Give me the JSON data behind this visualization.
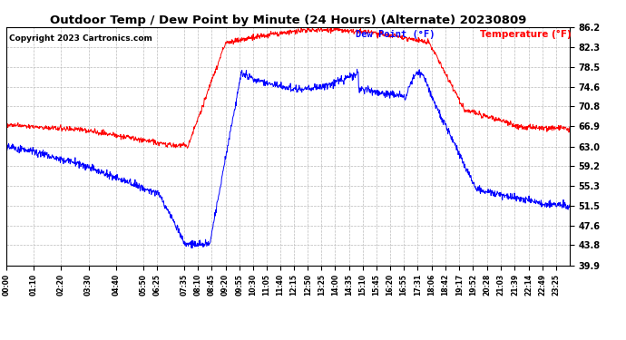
{
  "title": "Outdoor Temp / Dew Point by Minute (24 Hours) (Alternate) 20230809",
  "copyright": "Copyright 2023 Cartronics.com",
  "legend_dew": "Dew Point (°F)",
  "legend_temp": "Temperature (°F)",
  "temp_color": "red",
  "dew_color": "blue",
  "bg_color": "white",
  "grid_color": "#bbbbbb",
  "yticks": [
    39.9,
    43.8,
    47.6,
    51.5,
    55.3,
    59.2,
    63.0,
    66.9,
    70.8,
    74.6,
    78.5,
    82.3,
    86.2
  ],
  "xtick_labels": [
    "00:00",
    "01:10",
    "02:20",
    "03:30",
    "04:40",
    "05:50",
    "06:25",
    "07:35",
    "08:10",
    "08:45",
    "09:20",
    "09:55",
    "10:30",
    "11:05",
    "11:40",
    "12:15",
    "12:50",
    "13:25",
    "14:00",
    "14:35",
    "15:10",
    "15:45",
    "16:20",
    "16:55",
    "17:31",
    "18:06",
    "18:42",
    "19:17",
    "19:52",
    "20:28",
    "21:03",
    "21:39",
    "22:14",
    "22:49",
    "23:25"
  ],
  "ymin": 39.9,
  "ymax": 86.2
}
